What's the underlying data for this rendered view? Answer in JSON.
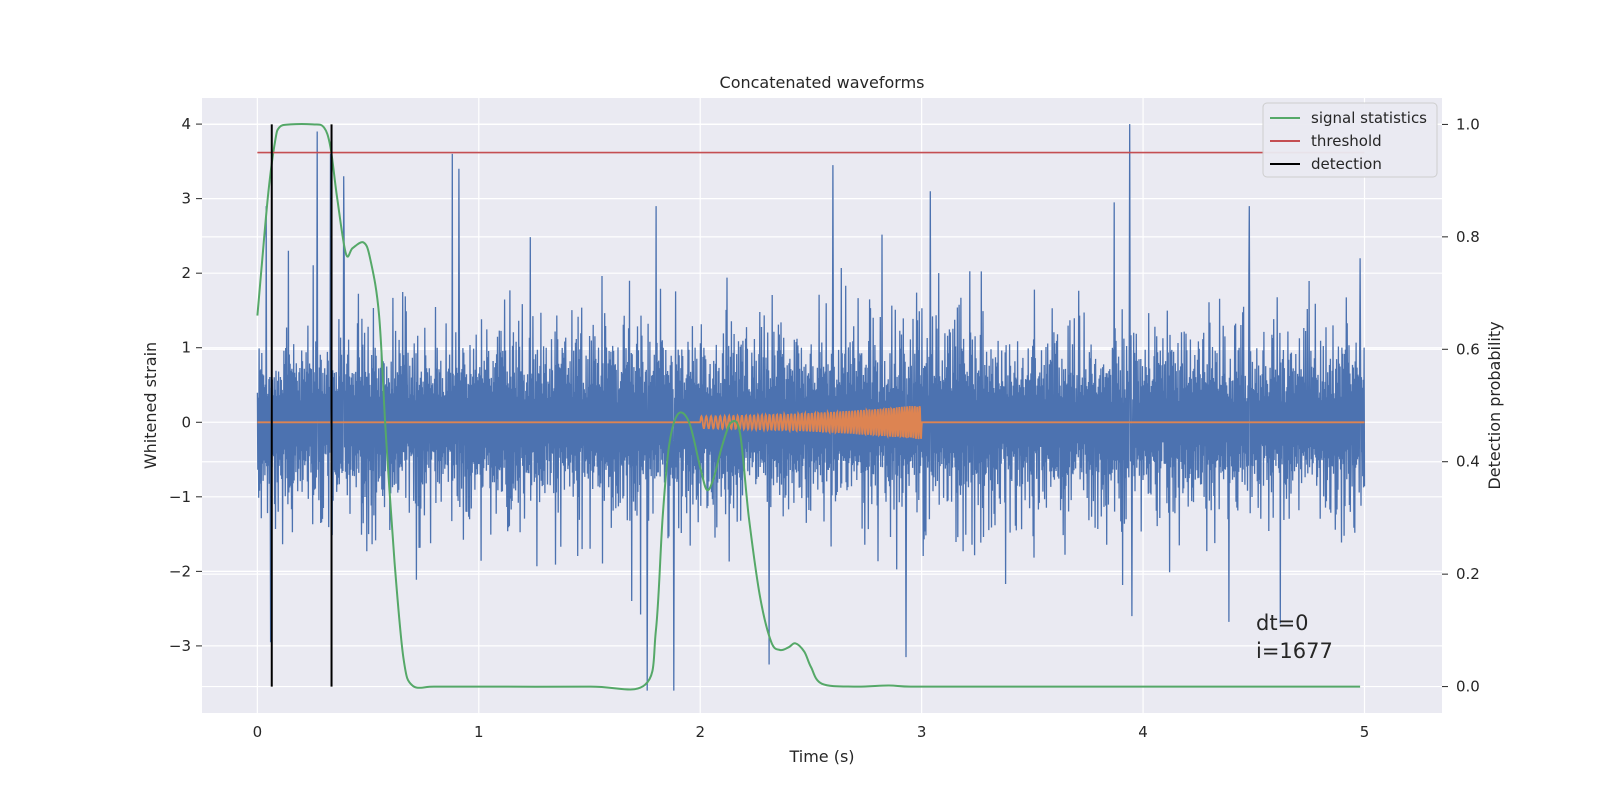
{
  "chart_data": {
    "type": "line",
    "title": "Concatenated waveforms",
    "xlabel": "Time (s)",
    "ylabel": "Whitened strain",
    "y2label": "Detection probability",
    "xlim": [
      -0.25,
      5.35
    ],
    "ylim": [
      -3.9,
      4.35
    ],
    "y2lim": [
      -0.047,
      1.047
    ],
    "xticks": [
      0,
      1,
      2,
      3,
      4,
      5
    ],
    "yticks": [
      -3,
      -2,
      -1,
      0,
      1,
      2,
      3,
      4
    ],
    "y2ticks": [
      0.0,
      0.2,
      0.4,
      0.6,
      0.8,
      1.0
    ],
    "ytick_labels": [
      "−3",
      "−2",
      "−1",
      "0",
      "1",
      "2",
      "3",
      "4"
    ],
    "y2tick_labels": [
      "0.0",
      "0.2",
      "0.4",
      "0.6",
      "0.8",
      "1.0"
    ],
    "grid": true,
    "legend_position": "top-right",
    "colors": {
      "background": "#eaeaf2",
      "grid": "#ffffff",
      "noise": "#4c72b0",
      "waveform": "#dd8452",
      "signal_statistics": "#55a868",
      "threshold": "#c44e52",
      "detection": "#000000"
    },
    "series": [
      {
        "name": "",
        "axis": "left",
        "kind": "noise",
        "x_range": [
          0,
          5
        ],
        "typical_abs_range": [
          -1.3,
          1.3
        ],
        "peaks": [
          {
            "x": 0.04,
            "y": 2.9
          },
          {
            "x": 0.06,
            "y": -2.95
          },
          {
            "x": 0.14,
            "y": 2.3
          },
          {
            "x": 0.27,
            "y": 3.9
          },
          {
            "x": 0.33,
            "y": 3.6
          },
          {
            "x": 0.39,
            "y": 3.3
          },
          {
            "x": 0.88,
            "y": 3.6
          },
          {
            "x": 0.91,
            "y": 3.4
          },
          {
            "x": 1.8,
            "y": 2.9
          },
          {
            "x": 1.76,
            "y": -3.6
          },
          {
            "x": 1.88,
            "y": -3.6
          },
          {
            "x": 2.31,
            "y": -3.25
          },
          {
            "x": 2.6,
            "y": 3.45
          },
          {
            "x": 2.93,
            "y": -3.15
          },
          {
            "x": 3.04,
            "y": 3.1
          },
          {
            "x": 3.94,
            "y": 4.0
          },
          {
            "x": 3.87,
            "y": 2.95
          },
          {
            "x": 3.95,
            "y": -2.6
          },
          {
            "x": 4.48,
            "y": 2.9
          },
          {
            "x": 4.62,
            "y": -2.7
          },
          {
            "x": 4.98,
            "y": 2.2
          }
        ]
      },
      {
        "name": "",
        "axis": "left",
        "kind": "waveform",
        "x": [
          0,
          2.0,
          2.2,
          2.4,
          2.6,
          2.8,
          3.0,
          5.0
        ],
        "amplitude": [
          0,
          0.08,
          0.09,
          0.11,
          0.14,
          0.18,
          0.23,
          0
        ]
      },
      {
        "name": "signal statistics",
        "axis": "right",
        "x": [
          0,
          0.02,
          0.05,
          0.08,
          0.1,
          0.15,
          0.25,
          0.3,
          0.33,
          0.36,
          0.4,
          0.43,
          0.48,
          0.51,
          0.55,
          0.58,
          0.62,
          0.66,
          0.7,
          0.8,
          1.0,
          1.5,
          1.75,
          1.8,
          1.83,
          1.86,
          1.9,
          1.95,
          2.0,
          2.03,
          2.06,
          2.1,
          2.14,
          2.18,
          2.22,
          2.27,
          2.32,
          2.36,
          2.4,
          2.43,
          2.47,
          2.5,
          2.55,
          2.7,
          2.85,
          2.95,
          3.2,
          4.0,
          4.98
        ],
        "y": [
          0.66,
          0.75,
          0.88,
          0.97,
          0.995,
          1.0,
          1.0,
          0.995,
          0.96,
          0.87,
          0.77,
          0.78,
          0.79,
          0.76,
          0.66,
          0.45,
          0.22,
          0.05,
          0.002,
          0.0,
          0.0,
          0.0,
          0.003,
          0.1,
          0.3,
          0.43,
          0.485,
          0.47,
          0.39,
          0.35,
          0.37,
          0.43,
          0.47,
          0.45,
          0.3,
          0.16,
          0.08,
          0.065,
          0.07,
          0.077,
          0.062,
          0.035,
          0.005,
          0.0,
          0.002,
          0.0,
          0.0,
          0.0,
          0.0
        ]
      },
      {
        "name": "threshold",
        "axis": "right",
        "x": [
          0,
          5.0
        ],
        "y": [
          0.95,
          0.95
        ]
      },
      {
        "name": "detection",
        "axis": "right",
        "kind": "vlines",
        "x": [
          0.065,
          0.335
        ],
        "y": [
          0.0,
          1.0
        ]
      }
    ],
    "annotations": [
      "dt=0",
      "i=1677"
    ]
  }
}
